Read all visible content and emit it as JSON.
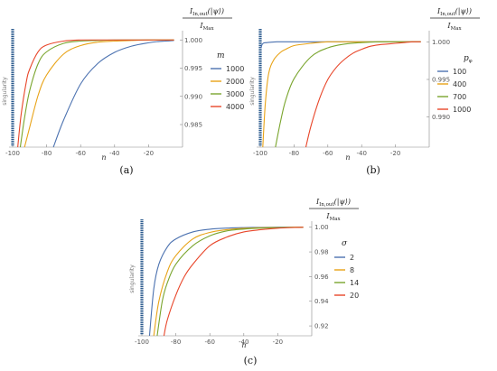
{
  "chart_data": [
    {
      "type": "line",
      "panel_label": "(a)",
      "xlabel": "n",
      "ylabel": "I_{In,out}(|ψ⟩) / I_Max",
      "ylabel_parts": {
        "main": "I",
        "sub": "In,out",
        "arg": "(|ψ⟩)",
        "den": "I",
        "den_sub": "Max"
      },
      "xlim": [
        -100,
        0
      ],
      "ylim": [
        0.981,
        1.001
      ],
      "xticks": [
        -100,
        -80,
        -60,
        -40,
        -20
      ],
      "xtick_labels": [
        "-100",
        "-80",
        "-60",
        "-40",
        "-20"
      ],
      "yticks": [
        0.985,
        0.99,
        0.995,
        1.0
      ],
      "ytick_labels": [
        "0.985",
        "0.990",
        "0.995",
        "1.000"
      ],
      "legend_title": "m",
      "legend_position": "right",
      "annotation": "singularity",
      "series": [
        {
          "name": "1000",
          "color": "#4c72b0",
          "x": [
            -76,
            -70,
            -60,
            -50,
            -40,
            -30,
            -20,
            -15,
            -10,
            -5
          ],
          "y": [
            0.981,
            0.9858,
            0.9922,
            0.9958,
            0.9978,
            0.9989,
            0.9995,
            0.9997,
            0.9998,
            0.9999
          ]
        },
        {
          "name": "2000",
          "color": "#e8a317",
          "x": [
            -93,
            -90,
            -85,
            -80,
            -70,
            -60,
            -50,
            -40,
            -30,
            -20,
            -10,
            -5
          ],
          "y": [
            0.981,
            0.9845,
            0.9902,
            0.9938,
            0.9975,
            0.999,
            0.9996,
            0.9998,
            0.9999,
            1.0,
            1.0,
            1.0
          ]
        },
        {
          "name": "3000",
          "color": "#7aa52e",
          "x": [
            -95.5,
            -93,
            -90,
            -85,
            -80,
            -70,
            -60,
            -50,
            -40,
            -30,
            -20,
            -10,
            -5
          ],
          "y": [
            0.981,
            0.9862,
            0.991,
            0.9958,
            0.9979,
            0.9994,
            0.9998,
            0.9999,
            1.0,
            1.0,
            1.0,
            1.0,
            1.0
          ]
        },
        {
          "name": "4000",
          "color": "#e8462a",
          "x": [
            -97,
            -95,
            -92,
            -90,
            -85,
            -80,
            -70,
            -60,
            -50,
            -40,
            -30,
            -20,
            -10,
            -5
          ],
          "y": [
            0.981,
            0.9868,
            0.9925,
            0.9948,
            0.9979,
            0.9991,
            0.9998,
            1.0,
            1.0,
            1.0,
            1.0,
            1.0,
            1.0,
            1.0
          ]
        }
      ]
    },
    {
      "type": "line",
      "panel_label": "(b)",
      "xlabel": "n",
      "ylabel": "I_{In,out}(|ψ⟩) / I_Max",
      "ylabel_parts": {
        "main": "I",
        "sub": "In,out",
        "arg": "(|ψ⟩)",
        "den": "I",
        "den_sub": "Max"
      },
      "xlim": [
        -100,
        0
      ],
      "ylim": [
        0.986,
        1.001
      ],
      "xticks": [
        -100,
        -80,
        -60,
        -40,
        -20
      ],
      "xtick_labels": [
        "-100",
        "-80",
        "-60",
        "-40",
        "-20"
      ],
      "yticks": [
        0.99,
        0.995,
        1.0
      ],
      "ytick_labels": [
        "0.990",
        "0.995",
        "1.000"
      ],
      "legend_title": "p_φ",
      "legend_position": "right",
      "annotation": "singularity",
      "series": [
        {
          "name": "100",
          "color": "#4c72b0",
          "x": [
            -99.5,
            -99,
            -98,
            -96,
            -90,
            -80,
            -60,
            -40,
            -20,
            -10,
            -5
          ],
          "y": [
            0.9992,
            0.9996,
            0.99985,
            0.9999,
            1.0,
            1.0,
            1.0,
            1.0,
            1.0,
            1.0,
            1.0
          ]
        },
        {
          "name": "400",
          "color": "#e8a317",
          "x": [
            -98.5,
            -97,
            -95,
            -92,
            -88,
            -85,
            -80,
            -70,
            -60,
            -50,
            -40,
            -30,
            -20,
            -10,
            -5
          ],
          "y": [
            0.986,
            0.9918,
            0.9958,
            0.9976,
            0.9986,
            0.999,
            0.9995,
            0.9998,
            1.0,
            1.0,
            1.0,
            1.0,
            1.0,
            1.0,
            1.0
          ]
        },
        {
          "name": "700",
          "color": "#7aa52e",
          "x": [
            -91,
            -88,
            -85,
            -80,
            -70,
            -60,
            -50,
            -40,
            -30,
            -20,
            -10,
            -5
          ],
          "y": [
            0.986,
            0.9894,
            0.9922,
            0.9951,
            0.998,
            0.9992,
            0.9997,
            0.9999,
            1.0,
            1.0,
            1.0,
            1.0
          ]
        },
        {
          "name": "1000",
          "color": "#e8462a",
          "x": [
            -73,
            -70,
            -65,
            -60,
            -55,
            -50,
            -45,
            -40,
            -35,
            -30,
            -25,
            -20,
            -15,
            -10,
            -5
          ],
          "y": [
            0.986,
            0.9888,
            0.9924,
            0.995,
            0.9966,
            0.9977,
            0.9985,
            0.999,
            0.9994,
            0.9996,
            0.9997,
            0.9998,
            0.9999,
            1.0,
            1.0
          ]
        }
      ]
    },
    {
      "type": "line",
      "panel_label": "(c)",
      "xlabel": "n",
      "ylabel": "I_{In,out}(|ψ⟩) / I_Max",
      "ylabel_parts": {
        "main": "I",
        "sub": "In,out",
        "arg": "(|ψ⟩)",
        "den": "I",
        "den_sub": "Max"
      },
      "xlim": [
        -100,
        0
      ],
      "ylim": [
        0.912,
        1.002
      ],
      "xticks": [
        -100,
        -80,
        -60,
        -40,
        -20
      ],
      "xtick_labels": [
        "-100",
        "-80",
        "-60",
        "-40",
        "-20"
      ],
      "yticks": [
        0.92,
        0.94,
        0.96,
        0.98,
        1.0
      ],
      "ytick_labels": [
        "0.92",
        "0.94",
        "0.96",
        "0.98",
        "1.00"
      ],
      "legend_title": "σ",
      "legend_position": "right",
      "annotation": "singularity",
      "series": [
        {
          "name": "2",
          "color": "#4c72b0",
          "x": [
            -95.5,
            -93,
            -90,
            -85,
            -80,
            -70,
            -60,
            -50,
            -40,
            -30,
            -20,
            -10,
            -5
          ],
          "y": [
            0.912,
            0.95,
            0.97,
            0.984,
            0.9905,
            0.9962,
            0.9984,
            0.9993,
            0.9997,
            0.9999,
            1.0,
            1.0,
            1.0
          ]
        },
        {
          "name": "8",
          "color": "#e8a317",
          "x": [
            -93,
            -90,
            -85,
            -80,
            -70,
            -60,
            -50,
            -40,
            -30,
            -20,
            -10,
            -5
          ],
          "y": [
            0.912,
            0.94,
            0.964,
            0.977,
            0.9905,
            0.9958,
            0.998,
            0.9991,
            0.9996,
            0.9998,
            1.0,
            1.0
          ]
        },
        {
          "name": "14",
          "color": "#7aa52e",
          "x": [
            -91,
            -88,
            -85,
            -80,
            -70,
            -60,
            -50,
            -40,
            -30,
            -20,
            -10,
            -5
          ],
          "y": [
            0.912,
            0.94,
            0.955,
            0.97,
            0.985,
            0.993,
            0.997,
            0.9985,
            0.9993,
            0.9997,
            0.9999,
            1.0
          ]
        },
        {
          "name": "20",
          "color": "#e8462a",
          "x": [
            -87,
            -85,
            -80,
            -75,
            -70,
            -60,
            -50,
            -40,
            -30,
            -20,
            -10,
            -5
          ],
          "y": [
            0.912,
            0.925,
            0.945,
            0.96,
            0.97,
            0.985,
            0.992,
            0.9962,
            0.998,
            0.9992,
            0.9998,
            1.0
          ]
        }
      ]
    }
  ]
}
